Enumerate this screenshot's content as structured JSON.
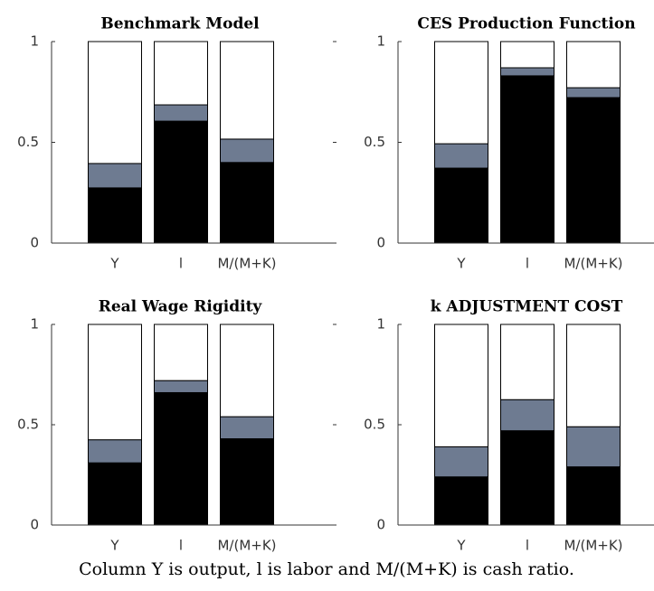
{
  "chart_data": [
    {
      "type": "stacked-bar",
      "title": "Benchmark Model",
      "categories": [
        "Y",
        "l",
        "M/(M+K)"
      ],
      "series": [
        {
          "color": "#000000",
          "values": [
            0.274,
            0.605,
            0.4
          ]
        },
        {
          "color": "#6e7b91",
          "values": [
            0.121,
            0.081,
            0.116
          ]
        },
        {
          "color": "#ffffff",
          "values": [
            0.605,
            0.314,
            0.484
          ]
        }
      ],
      "ylim": [
        0,
        1
      ],
      "yticks": [
        0,
        0.5,
        1
      ]
    },
    {
      "type": "stacked-bar",
      "title": "CES Production Function",
      "categories": [
        "Y",
        "l",
        "M/(M+K)"
      ],
      "series": [
        {
          "color": "#000000",
          "values": [
            0.372,
            0.83,
            0.722
          ]
        },
        {
          "color": "#6e7b91",
          "values": [
            0.121,
            0.04,
            0.049
          ]
        },
        {
          "color": "#ffffff",
          "values": [
            0.507,
            0.13,
            0.229
          ]
        }
      ],
      "ylim": [
        0,
        1
      ],
      "yticks": [
        0,
        0.5,
        1
      ]
    },
    {
      "type": "stacked-bar",
      "title": "Real Wage Rigidity",
      "categories": [
        "Y",
        "l",
        "M/(M+K)"
      ],
      "series": [
        {
          "color": "#000000",
          "values": [
            0.31,
            0.66,
            0.43
          ]
        },
        {
          "color": "#6e7b91",
          "values": [
            0.115,
            0.06,
            0.11
          ]
        },
        {
          "color": "#ffffff",
          "values": [
            0.575,
            0.28,
            0.46
          ]
        }
      ],
      "ylim": [
        0,
        1
      ],
      "yticks": [
        0,
        0.5,
        1
      ]
    },
    {
      "type": "stacked-bar",
      "title": "k ADJUSTMENT COST",
      "categories": [
        "Y",
        "l",
        "M/(M+K)"
      ],
      "series": [
        {
          "color": "#000000",
          "values": [
            0.24,
            0.47,
            0.29
          ]
        },
        {
          "color": "#6e7b91",
          "values": [
            0.15,
            0.155,
            0.2
          ]
        },
        {
          "color": "#ffffff",
          "values": [
            0.61,
            0.375,
            0.51
          ]
        }
      ],
      "ylim": [
        0,
        1
      ],
      "yticks": [
        0,
        0.5,
        1
      ]
    }
  ],
  "caption": "Column Y is output, l is labor and M/(M+K) is cash ratio."
}
